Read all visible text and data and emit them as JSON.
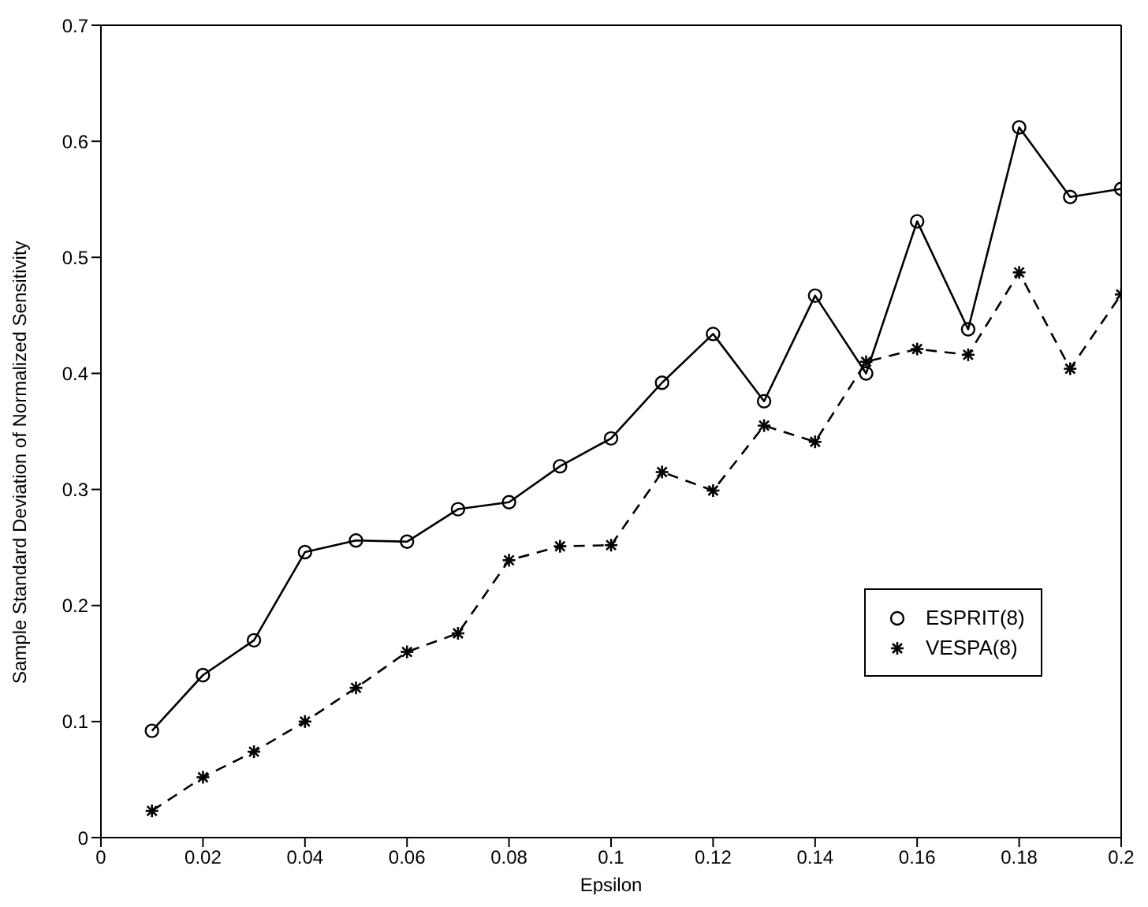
{
  "chart_data": {
    "type": "line",
    "xlabel": "Epsilon",
    "ylabel": "Sample Standard Deviation of Normalized Sensitivity",
    "x": [
      0.01,
      0.02,
      0.03,
      0.04,
      0.05,
      0.06,
      0.07,
      0.08,
      0.09,
      0.1,
      0.11,
      0.12,
      0.13,
      0.14,
      0.15,
      0.16,
      0.17,
      0.18,
      0.19,
      0.2
    ],
    "series": [
      {
        "name": "ESPRIT(8)",
        "color": "#000000",
        "marker": "circle",
        "line_style": "solid",
        "values": [
          0.092,
          0.14,
          0.17,
          0.246,
          0.256,
          0.255,
          0.283,
          0.289,
          0.32,
          0.344,
          0.392,
          0.434,
          0.376,
          0.467,
          0.4,
          0.531,
          0.438,
          0.612,
          0.552,
          0.559
        ]
      },
      {
        "name": "VESPA(8)",
        "color": "#000000",
        "marker": "cross",
        "line_style": "dashed",
        "values": [
          0.023,
          0.052,
          0.074,
          0.1,
          0.129,
          0.16,
          0.176,
          0.239,
          0.251,
          0.252,
          0.315,
          0.299,
          0.355,
          0.341,
          0.41,
          0.421,
          0.416,
          0.487,
          0.404,
          0.468
        ]
      }
    ],
    "xlim": [
      0,
      0.2
    ],
    "xticks": [
      0,
      0.02,
      0.04,
      0.06,
      0.08,
      0.1,
      0.12,
      0.14,
      0.16,
      0.18,
      0.2
    ],
    "ylim": [
      0,
      0.7
    ],
    "yticks": [
      0,
      0.1,
      0.2,
      0.3,
      0.4,
      0.5,
      0.6,
      0.7
    ],
    "grid": false,
    "legend": "right"
  }
}
